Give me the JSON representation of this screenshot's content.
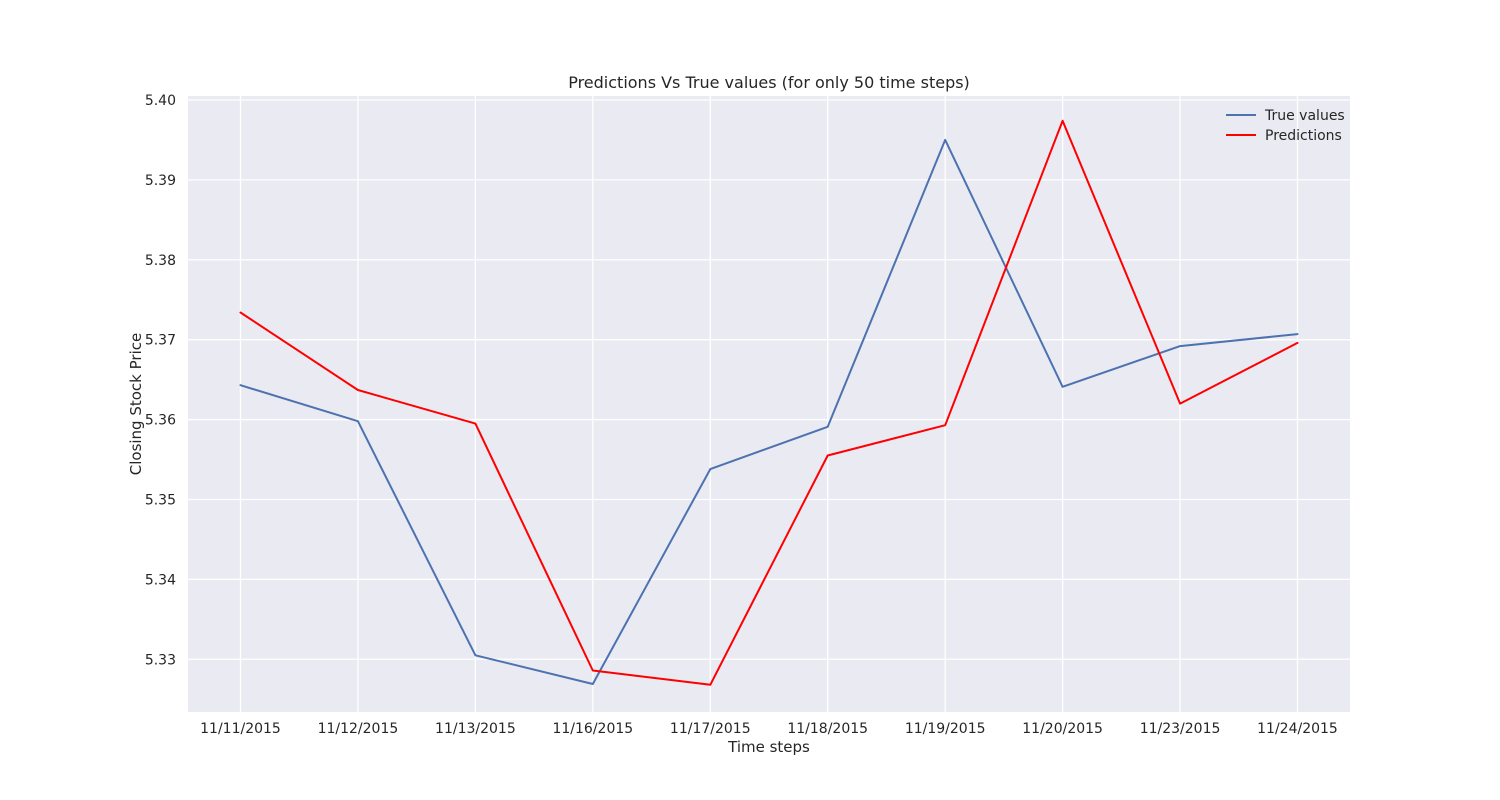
{
  "chart_data": {
    "type": "line",
    "title": "Predictions Vs True values (for only 50 time steps)",
    "xlabel": "Time steps",
    "ylabel": "Closing Stock Price",
    "categories": [
      "11/11/2015",
      "11/12/2015",
      "11/13/2015",
      "11/16/2015",
      "11/17/2015",
      "11/18/2015",
      "11/19/2015",
      "11/20/2015",
      "11/23/2015",
      "11/24/2015"
    ],
    "ylim": [
      5.3234,
      5.4005
    ],
    "yticks": [
      "5.33",
      "5.34",
      "5.35",
      "5.36",
      "5.37",
      "5.38",
      "5.39",
      "5.40"
    ],
    "series": [
      {
        "name": "True values",
        "color": "#4c72b0",
        "values": [
          5.3643,
          5.3598,
          5.3305,
          5.3269,
          5.3538,
          5.3591,
          5.395,
          5.3641,
          5.3692,
          5.3707
        ]
      },
      {
        "name": "Predictions",
        "color": "#ff0000",
        "values": [
          5.3734,
          5.3637,
          5.3595,
          5.3286,
          5.3268,
          5.3555,
          5.3593,
          5.3974,
          5.362,
          5.3696
        ]
      }
    ],
    "grid": true,
    "legend_position": "top-right",
    "background_color": "#eaeaf2",
    "grid_color": "#ffffff"
  }
}
